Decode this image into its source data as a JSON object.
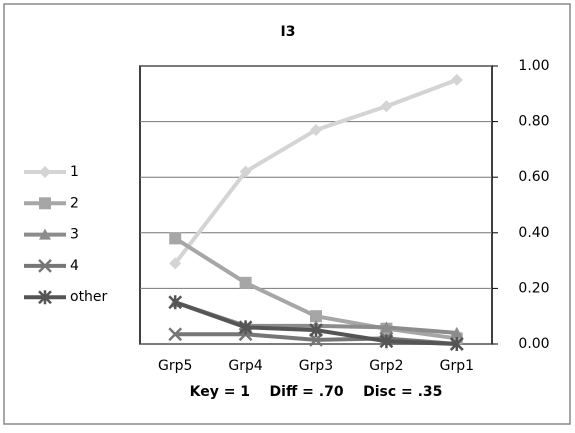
{
  "chart_data": {
    "type": "line",
    "title": "I3",
    "annotation": "Key = 1    Diff = .70    Disc = .35",
    "categories": [
      "Grp5",
      "Grp4",
      "Grp3",
      "Grp2",
      "Grp1"
    ],
    "series": [
      {
        "name": "1",
        "color": "#d4d4d4",
        "marker": "diamond",
        "values": [
          0.29,
          0.62,
          0.77,
          0.855,
          0.95
        ]
      },
      {
        "name": "2",
        "color": "#a6a6a6",
        "marker": "square",
        "values": [
          0.38,
          0.22,
          0.1,
          0.055,
          0.02
        ]
      },
      {
        "name": "3",
        "color": "#8c8c8c",
        "marker": "triangle",
        "values": [
          0.15,
          0.065,
          0.065,
          0.06,
          0.04
        ]
      },
      {
        "name": "4",
        "color": "#767676",
        "marker": "x",
        "values": [
          0.035,
          0.035,
          0.015,
          0.02,
          0.0
        ]
      },
      {
        "name": "other",
        "color": "#555555",
        "marker": "star",
        "values": [
          0.15,
          0.06,
          0.05,
          0.01,
          0.0
        ]
      }
    ],
    "ylim": [
      0,
      1
    ],
    "yticks": [
      {
        "value": 0,
        "label": "0.00"
      },
      {
        "value": 0.2,
        "label": "0.20"
      },
      {
        "value": 0.4,
        "label": "0.40"
      },
      {
        "value": 0.6,
        "label": "0.60"
      },
      {
        "value": 0.8,
        "label": "0.80"
      },
      {
        "value": 1,
        "label": "1.00"
      }
    ],
    "grid": true,
    "legend": "left"
  }
}
